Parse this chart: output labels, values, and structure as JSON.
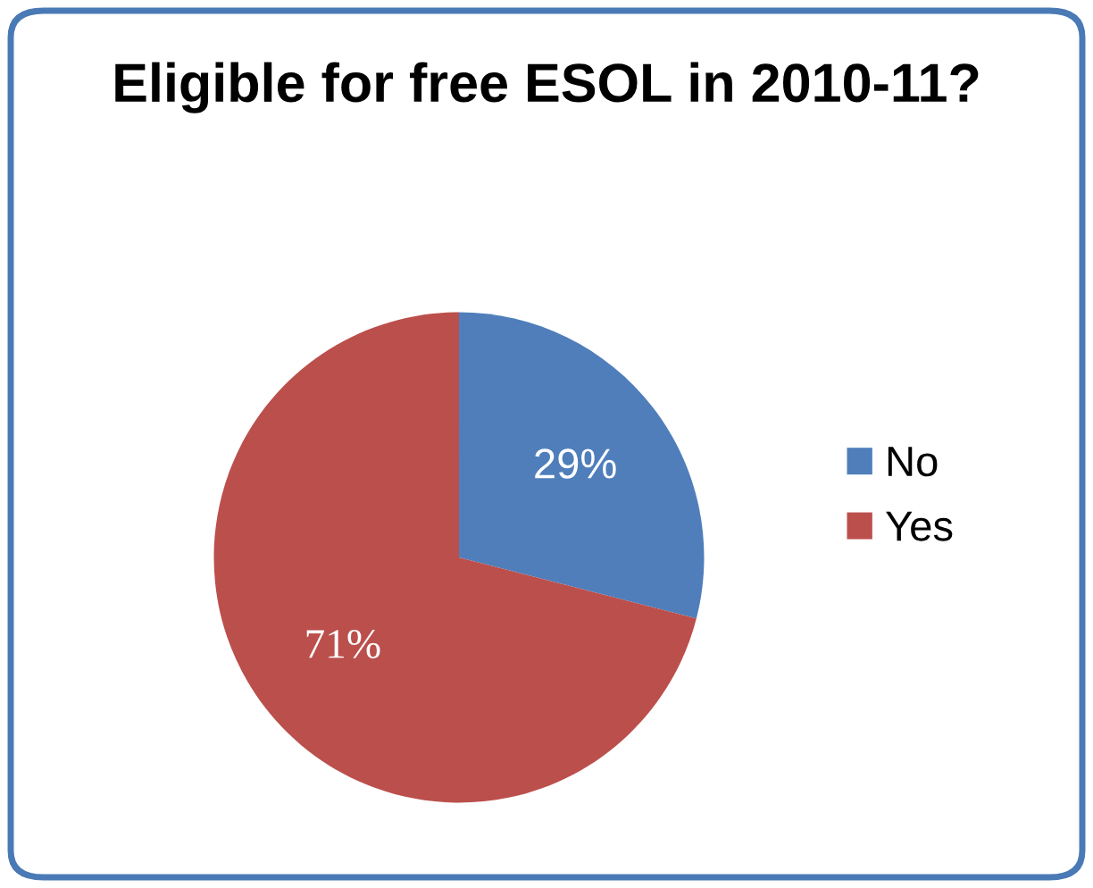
{
  "chart_data": {
    "type": "pie",
    "title": "Eligible for free ESOL in 2010-11?",
    "categories": [
      "No",
      "Yes"
    ],
    "values": [
      29,
      71
    ],
    "colors": [
      "#4f7ebb",
      "#bb4f4c"
    ],
    "value_labels": [
      "29%",
      "71%"
    ],
    "legend": "right"
  }
}
